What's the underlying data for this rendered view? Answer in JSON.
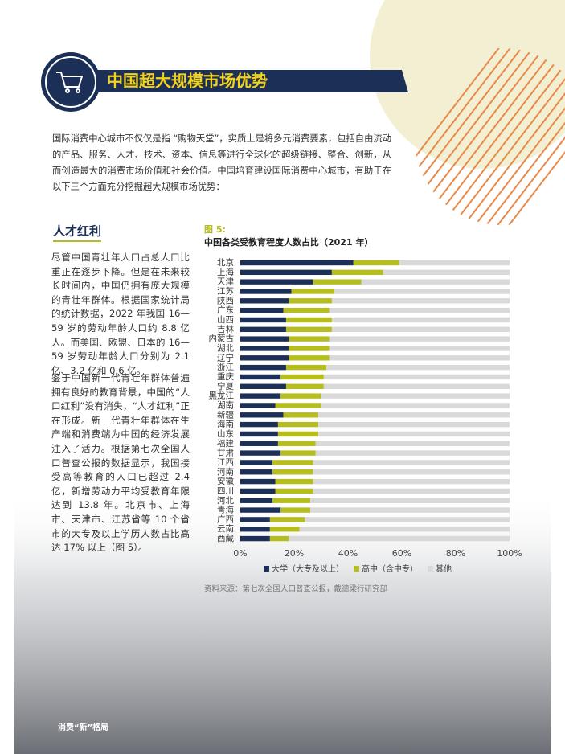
{
  "header": {
    "title": "中国超大规模市场优势"
  },
  "intro": "国际消费中心城市不仅仅是指 “购物天堂”，实质上是将多元消费要素，包括自由流动的产品、服务、人才、技术、资本、信息等进行全球化的超级链接、整合、创新，从而创造最大的消费市场价值和社会价值。中国培育建设国际消费中心城市，有助于在以下三个方面充分挖掘超大规模市场优势：",
  "section": {
    "title": "人才红利",
    "paragraphs": [
      "尽管中国青壮年人口占总人口比重正在逐步下降。但是在未来较长时间内，中国仍拥有庞大规模的青壮年群体。根据国家统计局的统计数据，2022 年我国 16—59 岁的劳动年龄人口约 8.8 亿人。而美国、欧盟、日本的 16—59 岁劳动年龄人口分别为 2.1 亿、3.2 亿和 0.6 亿。",
      "鉴于中国新一代青壮年群体普遍拥有良好的教育背景，中国的“人口红利”没有消失，“人才红利”正在形成。新一代青壮年群体在生产端和消费端为中国的经济发展注入了活力。根据第七次全国人口普查公报的数据显示，我国接受高等教育的人口已超过 2.4 亿，新增劳动力平均受教育年限达到 13.8 年。北京市、上海市、天津市、江苏省等 10 个省市的大专及以上学历人数占比高达 17% 以上（图 5）。"
    ]
  },
  "chart_data": {
    "type": "stacked_barh",
    "figure_label": "图 5:",
    "title": "中国各类受教育程度人数占比（2021 年）",
    "categories": [
      "北京",
      "上海",
      "天津",
      "江苏",
      "陕西",
      "广东",
      "山西",
      "吉林",
      "内蒙古",
      "湖北",
      "辽宁",
      "浙江",
      "重庆",
      "宁夏",
      "黑龙江",
      "湖南",
      "新疆",
      "海南",
      "山东",
      "福建",
      "甘肃",
      "江西",
      "河南",
      "安徽",
      "四川",
      "河北",
      "青海",
      "广西",
      "云南",
      "西藏"
    ],
    "series": [
      {
        "name": "大学（大专及以上）",
        "color": "#1c2f56",
        "values": [
          42,
          34,
          27,
          19,
          18,
          16,
          17,
          17,
          18,
          18,
          18,
          17,
          15,
          17,
          15,
          13,
          16,
          14,
          14,
          14,
          15,
          12,
          12,
          13,
          13,
          12,
          15,
          11,
          11,
          11
        ]
      },
      {
        "name": "高中（含中专）",
        "color": "#b6bd1e",
        "values": [
          17,
          19,
          18,
          16,
          16,
          17,
          17,
          17,
          15,
          15,
          15,
          15,
          16,
          14,
          15,
          17,
          13,
          15,
          15,
          14,
          13,
          15,
          15,
          14,
          14,
          14,
          11,
          13,
          11,
          7
        ]
      },
      {
        "name": "其他",
        "color": "#d9d9d9",
        "values": [
          41,
          47,
          55,
          65,
          66,
          67,
          66,
          66,
          67,
          67,
          67,
          68,
          69,
          69,
          70,
          70,
          71,
          71,
          71,
          72,
          72,
          73,
          73,
          73,
          73,
          74,
          74,
          76,
          78,
          82
        ]
      }
    ],
    "xlim": [
      0,
      100
    ],
    "xticks": [
      {
        "value": 0,
        "label": "0%"
      },
      {
        "value": 20,
        "label": "20%"
      },
      {
        "value": 40,
        "label": "40%"
      },
      {
        "value": 60,
        "label": "60%"
      },
      {
        "value": 80,
        "label": "80%"
      },
      {
        "value": 100,
        "label": "100%"
      }
    ],
    "legend": "bottom",
    "source": "资料来源：第七次全国人口普查公报，戴德梁行研究部"
  },
  "footer": {
    "text": "消费“新”格局"
  }
}
